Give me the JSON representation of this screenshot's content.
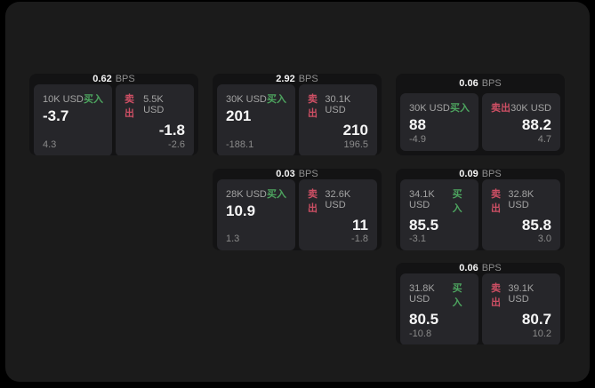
{
  "labels": {
    "bps_unit": "BPS",
    "buy": "买入",
    "sell": "卖出"
  },
  "colors": {
    "buy": "#4da45f",
    "sell": "#cd4f64",
    "panel_bg": "#1b1b1b",
    "card_bg": "#131314",
    "pane_bg": "#26262a"
  },
  "cards": [
    {
      "row": 1,
      "col": 1,
      "bps": "0.62",
      "buy": {
        "size": "10K USD",
        "price": "-3.7",
        "delta": "4.3"
      },
      "sell": {
        "size": "5.5K USD",
        "price": "-1.8",
        "delta": "-2.6"
      }
    },
    {
      "row": 1,
      "col": 2,
      "bps": "2.92",
      "buy": {
        "size": "30K USD",
        "price": "201",
        "delta": "-188.1"
      },
      "sell": {
        "size": "30.1K USD",
        "price": "210",
        "delta": "196.5"
      }
    },
    {
      "row": 1,
      "col": 3,
      "bps": "0.06",
      "buy": {
        "size": "30K USD",
        "price": "88",
        "delta": "-4.9"
      },
      "sell": {
        "size": "30K USD",
        "price": "88.2",
        "delta": "4.7"
      }
    },
    {
      "row": 2,
      "col": 2,
      "bps": "0.03",
      "buy": {
        "size": "28K USD",
        "price": "10.9",
        "delta": "1.3"
      },
      "sell": {
        "size": "32.6K USD",
        "price": "11",
        "delta": "-1.8"
      }
    },
    {
      "row": 2,
      "col": 3,
      "bps": "0.09",
      "buy": {
        "size": "34.1K USD",
        "price": "85.5",
        "delta": "-3.1"
      },
      "sell": {
        "size": "32.8K USD",
        "price": "85.8",
        "delta": "3.0"
      }
    },
    {
      "row": 3,
      "col": 3,
      "bps": "0.06",
      "buy": {
        "size": "31.8K USD",
        "price": "80.5",
        "delta": "-10.8"
      },
      "sell": {
        "size": "39.1K USD",
        "price": "80.7",
        "delta": "10.2"
      }
    }
  ]
}
